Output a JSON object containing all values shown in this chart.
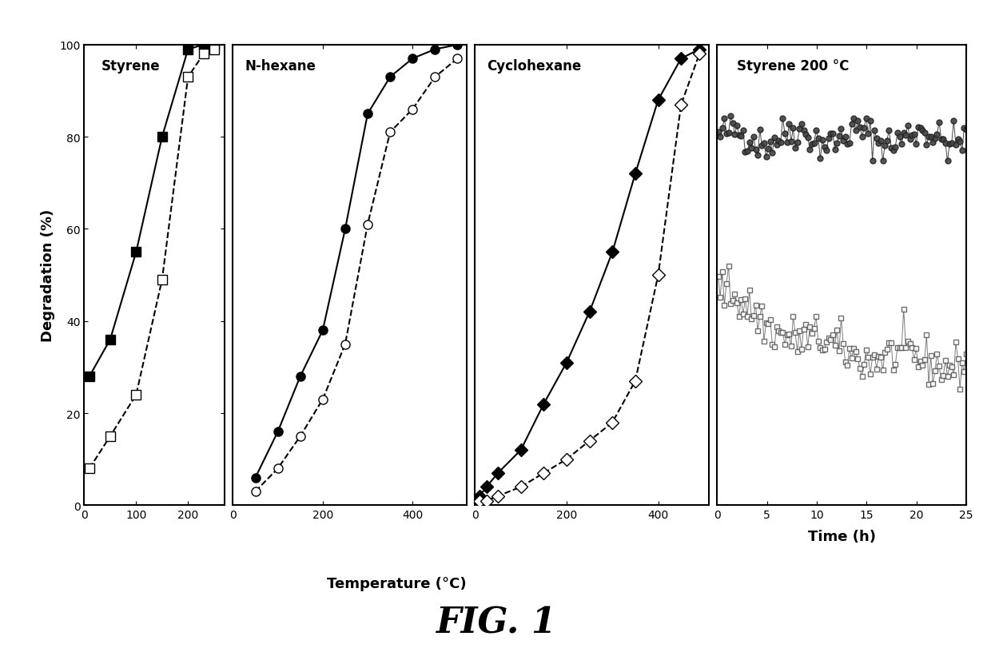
{
  "fig_width": 12.4,
  "fig_height": 8.12,
  "background_color": "#ffffff",
  "ylabel": "Degradation (%)",
  "xlabel_temp": "Temperature (°C)",
  "xlabel_time": "Time (h)",
  "fig_label": "FIG. 1",
  "styrene": {
    "title": "Styrene",
    "filled_square": {
      "x": [
        10,
        50,
        100,
        150,
        200,
        230,
        250
      ],
      "y": [
        28,
        36,
        55,
        80,
        99,
        100,
        100
      ]
    },
    "open_square": {
      "x": [
        10,
        50,
        100,
        150,
        200,
        230,
        250
      ],
      "y": [
        8,
        15,
        24,
        49,
        93,
        98,
        99
      ]
    },
    "xlim": [
      0,
      270
    ],
    "xticks": [
      0,
      100,
      200
    ]
  },
  "nhexane": {
    "title": "N-hexane",
    "filled_circle": {
      "x": [
        50,
        100,
        150,
        200,
        250,
        300,
        350,
        400,
        450,
        500
      ],
      "y": [
        6,
        16,
        28,
        38,
        60,
        85,
        93,
        97,
        99,
        100
      ]
    },
    "open_circle": {
      "x": [
        50,
        100,
        150,
        200,
        250,
        300,
        350,
        400,
        450,
        500
      ],
      "y": [
        3,
        8,
        15,
        23,
        35,
        61,
        81,
        86,
        93,
        97
      ]
    },
    "xlim": [
      0,
      520
    ],
    "xticks": [
      0,
      200,
      400
    ]
  },
  "cyclohexane": {
    "title": "Cyclohexane",
    "filled_diamond": {
      "x": [
        10,
        25,
        50,
        100,
        150,
        200,
        250,
        300,
        350,
        400,
        450,
        490
      ],
      "y": [
        2,
        4,
        7,
        12,
        22,
        31,
        42,
        55,
        72,
        88,
        97,
        99
      ]
    },
    "open_diamond": {
      "x": [
        10,
        25,
        50,
        100,
        150,
        200,
        250,
        300,
        350,
        400,
        450,
        490
      ],
      "y": [
        1,
        1,
        2,
        4,
        7,
        10,
        14,
        18,
        27,
        50,
        87,
        98
      ]
    },
    "xlim": [
      0,
      510
    ],
    "xticks": [
      0,
      200,
      400
    ]
  },
  "styrene200": {
    "title": "Styrene 200 °C",
    "upper_mean": 80,
    "upper_noise": 2.0,
    "lower_start": 48,
    "lower_end": 30,
    "lower_noise": 2.5,
    "n_points": 120,
    "xlim": [
      0,
      25
    ],
    "xticks": [
      0,
      5,
      10,
      15,
      20,
      25
    ]
  },
  "ylim": [
    0,
    100
  ],
  "yticks": [
    0,
    20,
    40,
    60,
    80,
    100
  ],
  "line_color": "#000000",
  "marker_size": 8,
  "linewidth": 1.5
}
